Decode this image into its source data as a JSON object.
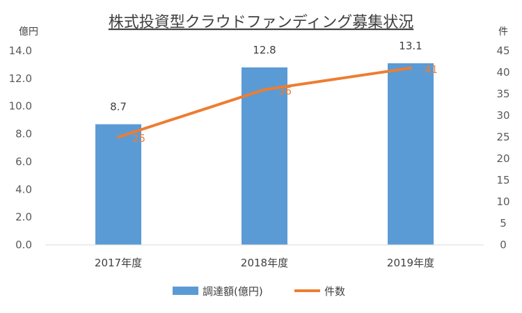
{
  "chart_data": {
    "type": "bar",
    "title": "株式投資型クラウドファンディング募集状況",
    "categories": [
      "2017年度",
      "2018年度",
      "2019年度"
    ],
    "series": [
      {
        "name": "調達額(億円)",
        "type": "bar",
        "axis": "left",
        "values": [
          8.7,
          12.8,
          13.1
        ],
        "labels": [
          "8.7",
          "12.8",
          "13.1"
        ]
      },
      {
        "name": "件数",
        "type": "line",
        "axis": "right",
        "values": [
          25,
          36,
          41
        ],
        "labels": [
          "25",
          "36",
          "41"
        ]
      }
    ],
    "y_left": {
      "unit_label": "億円",
      "ylim": [
        0,
        14
      ],
      "ticks": [
        "0.0",
        "2.0",
        "4.0",
        "6.0",
        "8.0",
        "10.0",
        "12.0",
        "14.0"
      ]
    },
    "y_right": {
      "unit_label": "件",
      "ylim": [
        0,
        45
      ],
      "ticks": [
        "0",
        "5",
        "10",
        "15",
        "20",
        "25",
        "30",
        "35",
        "40",
        "45"
      ]
    },
    "legend": "bottom",
    "grid": false,
    "colors": {
      "bar": "#5B9BD5",
      "line": "#ED7D31",
      "axis": "#D9D9D9"
    }
  }
}
